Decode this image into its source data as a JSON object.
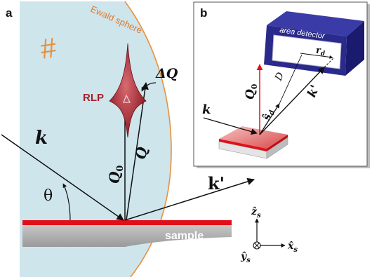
{
  "panel_a": {
    "label": "a",
    "ewald_label": "Ewald sphere",
    "hash_symbol": "#",
    "rlp_label": "RLP",
    "delta_q": "ΔQ",
    "q0": "Q",
    "q0_sub": "0",
    "q": "Q",
    "k": "k",
    "k_prime": "k'",
    "theta": "θ",
    "sample_label": "sample",
    "axis_z": "ẑ",
    "axis_z_sub": "s",
    "axis_x": "x̂",
    "axis_x_sub": "s",
    "axis_y": "ŷ",
    "axis_y_sub": "s"
  },
  "panel_b": {
    "label": "b",
    "detector_label": "area detector",
    "rd": "r",
    "rd_sub": "d",
    "D": "D",
    "sd": "ŝ",
    "sd_sub": "d",
    "q0": "Q",
    "q0_sub": "0",
    "k": "k",
    "k_prime": "k'"
  },
  "colors": {
    "sphere_fill": "#cfe5ec",
    "sphere_edge": "#e8903a",
    "ewald_text": "#e07a2c",
    "rlp": "#a3202a",
    "red_vector": "#e0101a",
    "sample_gray": "#b9b9b9",
    "detector_blue": "#2a2a8c"
  }
}
